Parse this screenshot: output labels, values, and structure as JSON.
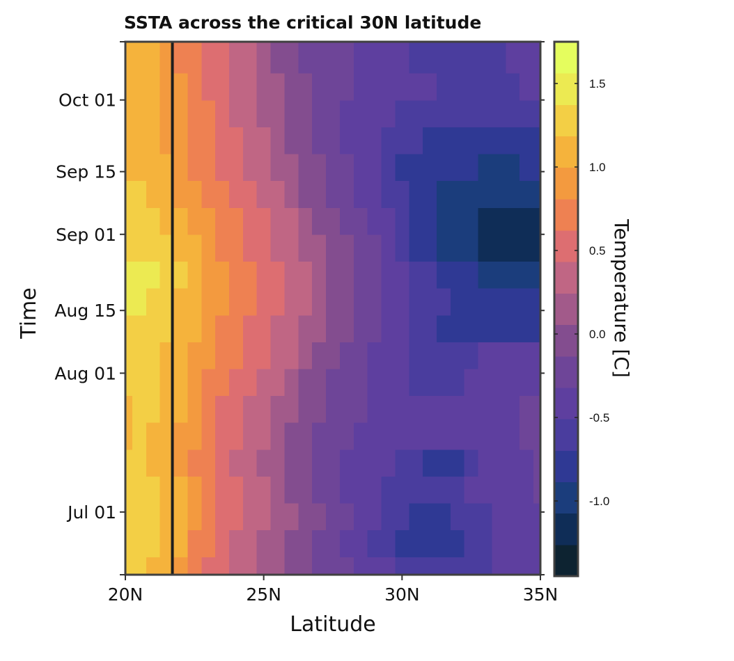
{
  "chart_data": {
    "type": "heatmap",
    "title": "SSTA across the critical 30N latitude",
    "xlabel": "Latitude",
    "ylabel": "Time",
    "x_ticks": [
      {
        "value": 20,
        "label": "20N"
      },
      {
        "value": 25,
        "label": "25N"
      },
      {
        "value": 30,
        "label": "30N"
      },
      {
        "value": 35,
        "label": "35N"
      }
    ],
    "y_ticks": [
      {
        "value": "2010-07-01",
        "label": "Jul 01"
      },
      {
        "value": "2010-08-01",
        "label": "Aug 01"
      },
      {
        "value": "2010-08-15",
        "label": "Aug 15"
      },
      {
        "value": "2010-09-01",
        "label": "Sep 01"
      },
      {
        "value": "2010-09-15",
        "label": "Sep 15"
      },
      {
        "value": "2010-10-01",
        "label": "Oct 01"
      }
    ],
    "xlim": [
      20,
      35
    ],
    "ylim": [
      "2010-06-17",
      "2010-10-14"
    ],
    "reference_line": {
      "latitude": 21.7
    },
    "colorbar": {
      "title": "Temperature [C]",
      "range": [
        -1.45,
        1.75
      ],
      "ticks": [
        {
          "value": 1.5,
          "label": "1.5"
        },
        {
          "value": 1.0,
          "label": "1.0"
        },
        {
          "value": 0.5,
          "label": "0.5"
        },
        {
          "value": 0.0,
          "label": "0.0"
        },
        {
          "value": -0.5,
          "label": "-0.5"
        },
        {
          "value": -1.0,
          "label": "-1.0"
        }
      ],
      "colors": [
        "#0d2331",
        "#0f2d57",
        "#1b3d7c",
        "#2f3994",
        "#4a3d9e",
        "#5e3f9f",
        "#6e4598",
        "#834d8f",
        "#a25a8a",
        "#c06684",
        "#dd6e71",
        "#ee8152",
        "#f39a3f",
        "#f5b33c",
        "#f3cf45",
        "#ecea52",
        "#e5fd5e"
      ]
    },
    "latitudes": [
      20,
      20.5,
      21,
      21.5,
      22,
      22.5,
      23,
      23.5,
      24,
      24.5,
      25,
      25.5,
      26,
      26.5,
      27,
      27.5,
      28,
      28.5,
      29,
      29.5,
      30,
      30.5,
      31,
      31.5,
      32,
      32.5,
      33,
      33.5,
      34,
      34.5,
      35
    ],
    "rows": [
      {
        "date": "2010-06-18",
        "values": [
          1.2,
          1.2,
          1.1,
          1.1,
          0.9,
          0.7,
          0.55,
          0.45,
          0.35,
          0.25,
          0.15,
          0.1,
          0.05,
          -0.05,
          -0.15,
          -0.25,
          -0.3,
          -0.35,
          -0.45,
          -0.5,
          -0.55,
          -0.6,
          -0.65,
          -0.65,
          -0.6,
          -0.55,
          -0.55,
          -0.5,
          -0.45,
          -0.4,
          -0.35
        ]
      },
      {
        "date": "2010-06-24",
        "values": [
          1.2,
          1.25,
          1.2,
          1.1,
          1.0,
          0.8,
          0.65,
          0.5,
          0.4,
          0.3,
          0.2,
          0.15,
          0.05,
          -0.05,
          -0.15,
          -0.25,
          -0.35,
          -0.45,
          -0.55,
          -0.65,
          -0.75,
          -0.85,
          -0.85,
          -0.8,
          -0.7,
          -0.6,
          -0.55,
          -0.5,
          -0.45,
          -0.4,
          -0.35
        ]
      },
      {
        "date": "2010-06-30",
        "values": [
          1.25,
          1.3,
          1.25,
          1.15,
          1.05,
          0.9,
          0.75,
          0.6,
          0.5,
          0.4,
          0.3,
          0.2,
          0.1,
          0.0,
          -0.1,
          -0.2,
          -0.3,
          -0.4,
          -0.5,
          -0.6,
          -0.65,
          -0.7,
          -0.75,
          -0.7,
          -0.65,
          -0.6,
          -0.55,
          -0.5,
          -0.45,
          -0.4,
          -0.35
        ]
      },
      {
        "date": "2010-07-06",
        "values": [
          1.2,
          1.25,
          1.2,
          1.1,
          1.0,
          0.85,
          0.7,
          0.55,
          0.45,
          0.35,
          0.25,
          0.15,
          0.05,
          -0.05,
          -0.15,
          -0.25,
          -0.35,
          -0.45,
          -0.5,
          -0.55,
          -0.6,
          -0.6,
          -0.65,
          -0.6,
          -0.55,
          -0.5,
          -0.45,
          -0.4,
          -0.4,
          -0.35,
          -0.3
        ]
      },
      {
        "date": "2010-07-12",
        "values": [
          1.2,
          1.2,
          1.15,
          1.05,
          0.95,
          0.8,
          0.65,
          0.5,
          0.4,
          0.3,
          0.2,
          0.1,
          0.0,
          -0.1,
          -0.2,
          -0.3,
          -0.35,
          -0.4,
          -0.45,
          -0.5,
          -0.55,
          -0.6,
          -0.7,
          -0.75,
          -0.7,
          -0.6,
          -0.5,
          -0.45,
          -0.4,
          -0.35,
          -0.3
        ]
      },
      {
        "date": "2010-07-18",
        "values": [
          1.15,
          1.2,
          1.15,
          1.05,
          0.95,
          0.85,
          0.7,
          0.55,
          0.45,
          0.35,
          0.25,
          0.15,
          0.05,
          -0.05,
          -0.15,
          -0.2,
          -0.3,
          -0.35,
          -0.4,
          -0.45,
          -0.45,
          -0.5,
          -0.5,
          -0.5,
          -0.45,
          -0.45,
          -0.4,
          -0.35,
          -0.35,
          -0.3,
          -0.3
        ]
      },
      {
        "date": "2010-07-24",
        "values": [
          1.15,
          1.2,
          1.2,
          1.1,
          1.0,
          0.85,
          0.7,
          0.6,
          0.5,
          0.4,
          0.3,
          0.2,
          0.1,
          0.0,
          -0.1,
          -0.2,
          -0.25,
          -0.3,
          -0.35,
          -0.4,
          -0.45,
          -0.45,
          -0.5,
          -0.5,
          -0.45,
          -0.45,
          -0.4,
          -0.35,
          -0.35,
          -0.3,
          -0.3
        ]
      },
      {
        "date": "2010-07-30",
        "values": [
          1.2,
          1.25,
          1.2,
          1.1,
          1.0,
          0.9,
          0.75,
          0.65,
          0.55,
          0.45,
          0.35,
          0.25,
          0.15,
          0.05,
          -0.05,
          -0.15,
          -0.25,
          -0.3,
          -0.4,
          -0.45,
          -0.5,
          -0.55,
          -0.55,
          -0.6,
          -0.55,
          -0.5,
          -0.5,
          -0.45,
          -0.4,
          -0.4,
          -0.35
        ]
      },
      {
        "date": "2010-08-05",
        "values": [
          1.3,
          1.3,
          1.25,
          1.15,
          1.05,
          0.95,
          0.85,
          0.75,
          0.65,
          0.55,
          0.45,
          0.35,
          0.25,
          0.15,
          0.05,
          -0.05,
          -0.15,
          -0.25,
          -0.35,
          -0.45,
          -0.5,
          -0.55,
          -0.6,
          -0.6,
          -0.55,
          -0.55,
          -0.5,
          -0.5,
          -0.45,
          -0.45,
          -0.4
        ]
      },
      {
        "date": "2010-08-11",
        "values": [
          1.35,
          1.35,
          1.3,
          1.2,
          1.1,
          1.0,
          0.9,
          0.8,
          0.7,
          0.6,
          0.5,
          0.4,
          0.3,
          0.2,
          0.1,
          0.0,
          -0.1,
          -0.2,
          -0.3,
          -0.4,
          -0.5,
          -0.6,
          -0.65,
          -0.7,
          -0.7,
          -0.7,
          -0.75,
          -0.8,
          -0.85,
          -0.8,
          -0.75
        ]
      },
      {
        "date": "2010-08-17",
        "values": [
          1.45,
          1.45,
          1.35,
          1.25,
          1.15,
          1.05,
          0.95,
          0.85,
          0.75,
          0.65,
          0.55,
          0.45,
          0.35,
          0.25,
          0.15,
          0.05,
          -0.05,
          -0.15,
          -0.25,
          -0.35,
          -0.45,
          -0.55,
          -0.6,
          -0.65,
          -0.7,
          -0.7,
          -0.75,
          -0.75,
          -0.75,
          -0.7,
          -0.7
        ]
      },
      {
        "date": "2010-08-23",
        "values": [
          1.45,
          1.45,
          1.4,
          1.3,
          1.2,
          1.05,
          0.95,
          0.85,
          0.75,
          0.65,
          0.55,
          0.45,
          0.35,
          0.25,
          0.15,
          0.05,
          -0.05,
          -0.15,
          -0.25,
          -0.35,
          -0.45,
          -0.55,
          -0.65,
          -0.75,
          -0.8,
          -0.85,
          -0.9,
          -0.95,
          -1.0,
          -1.0,
          -0.95
        ]
      },
      {
        "date": "2010-08-29",
        "values": [
          1.35,
          1.35,
          1.3,
          1.2,
          1.1,
          1.0,
          0.9,
          0.8,
          0.7,
          0.6,
          0.5,
          0.4,
          0.3,
          0.2,
          0.1,
          0.0,
          -0.1,
          -0.2,
          -0.3,
          -0.45,
          -0.6,
          -0.7,
          -0.8,
          -0.9,
          -1.0,
          -1.05,
          -1.1,
          -1.15,
          -1.2,
          -1.25,
          -1.25
        ]
      },
      {
        "date": "2010-09-04",
        "values": [
          1.3,
          1.3,
          1.25,
          1.15,
          1.05,
          0.95,
          0.85,
          0.75,
          0.65,
          0.55,
          0.45,
          0.35,
          0.25,
          0.15,
          0.05,
          -0.05,
          -0.15,
          -0.25,
          -0.35,
          -0.5,
          -0.65,
          -0.75,
          -0.85,
          -0.95,
          -1.0,
          -1.05,
          -1.1,
          -1.1,
          -1.15,
          -1.2,
          -1.2
        ]
      },
      {
        "date": "2010-09-10",
        "values": [
          1.2,
          1.2,
          1.15,
          1.05,
          0.95,
          0.85,
          0.75,
          0.65,
          0.55,
          0.45,
          0.35,
          0.25,
          0.15,
          0.05,
          -0.05,
          -0.15,
          -0.25,
          -0.35,
          -0.45,
          -0.55,
          -0.65,
          -0.75,
          -0.85,
          -0.9,
          -0.95,
          -1.0,
          -1.0,
          -1.05,
          -1.05,
          -1.05,
          -1.0
        ]
      },
      {
        "date": "2010-09-16",
        "values": [
          1.15,
          1.15,
          1.1,
          1.0,
          0.9,
          0.8,
          0.7,
          0.6,
          0.5,
          0.4,
          0.3,
          0.2,
          0.1,
          0.0,
          -0.1,
          -0.2,
          -0.3,
          -0.4,
          -0.5,
          -0.6,
          -0.7,
          -0.75,
          -0.8,
          -0.85,
          -0.85,
          -0.85,
          -0.9,
          -0.9,
          -0.9,
          -0.85,
          -0.85
        ]
      },
      {
        "date": "2010-09-22",
        "values": [
          1.1,
          1.1,
          1.05,
          0.95,
          0.85,
          0.75,
          0.65,
          0.55,
          0.45,
          0.35,
          0.25,
          0.15,
          0.05,
          -0.05,
          -0.15,
          -0.25,
          -0.35,
          -0.45,
          -0.5,
          -0.55,
          -0.6,
          -0.65,
          -0.7,
          -0.7,
          -0.7,
          -0.7,
          -0.75,
          -0.75,
          -0.75,
          -0.7,
          -0.7
        ]
      },
      {
        "date": "2010-09-28",
        "values": [
          1.05,
          1.1,
          1.05,
          0.95,
          0.85,
          0.75,
          0.65,
          0.5,
          0.4,
          0.3,
          0.2,
          0.1,
          0.0,
          -0.1,
          -0.2,
          -0.3,
          -0.35,
          -0.4,
          -0.45,
          -0.5,
          -0.55,
          -0.6,
          -0.6,
          -0.6,
          -0.6,
          -0.6,
          -0.6,
          -0.6,
          -0.6,
          -0.55,
          -0.55
        ]
      },
      {
        "date": "2010-10-04",
        "values": [
          1.1,
          1.1,
          1.05,
          0.95,
          0.85,
          0.7,
          0.6,
          0.5,
          0.4,
          0.3,
          0.2,
          0.1,
          0.0,
          -0.1,
          -0.2,
          -0.25,
          -0.3,
          -0.35,
          -0.4,
          -0.45,
          -0.5,
          -0.5,
          -0.5,
          -0.55,
          -0.55,
          -0.55,
          -0.55,
          -0.55,
          -0.55,
          -0.5,
          -0.5
        ]
      },
      {
        "date": "2010-10-10",
        "values": [
          1.05,
          1.05,
          1.0,
          0.9,
          0.8,
          0.7,
          0.55,
          0.45,
          0.35,
          0.25,
          0.15,
          0.05,
          -0.05,
          -0.15,
          -0.2,
          -0.25,
          -0.3,
          -0.35,
          -0.4,
          -0.45,
          -0.5,
          -0.55,
          -0.6,
          -0.6,
          -0.6,
          -0.55,
          -0.55,
          -0.55,
          -0.5,
          -0.5,
          -0.5
        ]
      }
    ]
  }
}
